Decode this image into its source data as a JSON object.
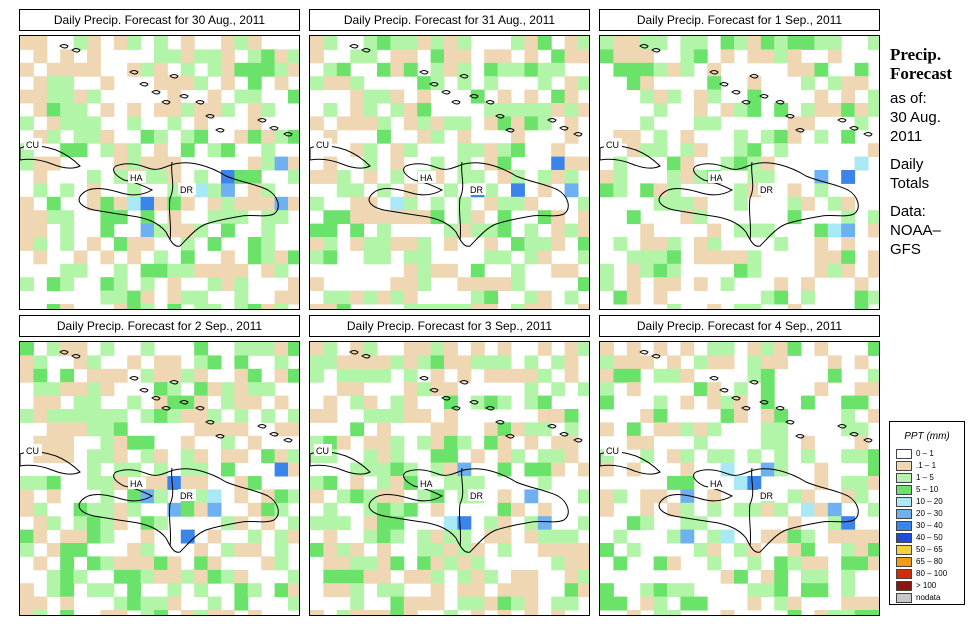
{
  "panels": [
    {
      "title": "Daily Precip. Forecast for  30 Aug., 2011",
      "seed": 11,
      "dens": 0.62
    },
    {
      "title": "Daily Precip. Forecast for  31 Aug., 2011",
      "seed": 23,
      "dens": 0.58
    },
    {
      "title": "Daily Precip. Forecast for  1 Sep., 2011",
      "seed": 37,
      "dens": 0.45
    },
    {
      "title": "Daily Precip. Forecast for  2 Sep., 2011",
      "seed": 41,
      "dens": 0.6
    },
    {
      "title": "Daily Precip. Forecast for  3 Sep., 2011",
      "seed": 53,
      "dens": 0.62
    },
    {
      "title": "Daily Precip. Forecast for  4 Sep., 2011",
      "seed": 67,
      "dens": 0.45
    }
  ],
  "map_labels": {
    "cu": "CU",
    "ha": "HA",
    "dr": "DR"
  },
  "side": {
    "heading1": "Precip.",
    "heading2": "Forecast",
    "asof": "as of:",
    "date1": "30 Aug.",
    "date2": "2011",
    "daily1": "Daily",
    "daily2": "Totals",
    "data1": "Data:",
    "data2": "NOAA–",
    "data3": "GFS"
  },
  "legend": {
    "title": "PPT (mm)",
    "items": [
      {
        "label": "0 – 1",
        "color": "#ffffff"
      },
      {
        "label": ".1 – 1",
        "color": "#f0d7b3"
      },
      {
        "label": "1 – 5",
        "color": "#b2f5a8"
      },
      {
        "label": "5 – 10",
        "color": "#6be36b"
      },
      {
        "label": "10 – 20",
        "color": "#a9e8f5"
      },
      {
        "label": "20 – 30",
        "color": "#6fb1f0"
      },
      {
        "label": "30 – 40",
        "color": "#3a84ea"
      },
      {
        "label": "40 – 50",
        "color": "#1a4fd6"
      },
      {
        "label": "50 – 65",
        "color": "#f5d23a"
      },
      {
        "label": "65 – 80",
        "color": "#f59a16"
      },
      {
        "label": "80 – 100",
        "color": "#d42a12"
      },
      {
        "label": "> 100",
        "color": "#8a1410"
      },
      {
        "label": "nodata",
        "color": "#c8c8c8"
      }
    ]
  }
}
